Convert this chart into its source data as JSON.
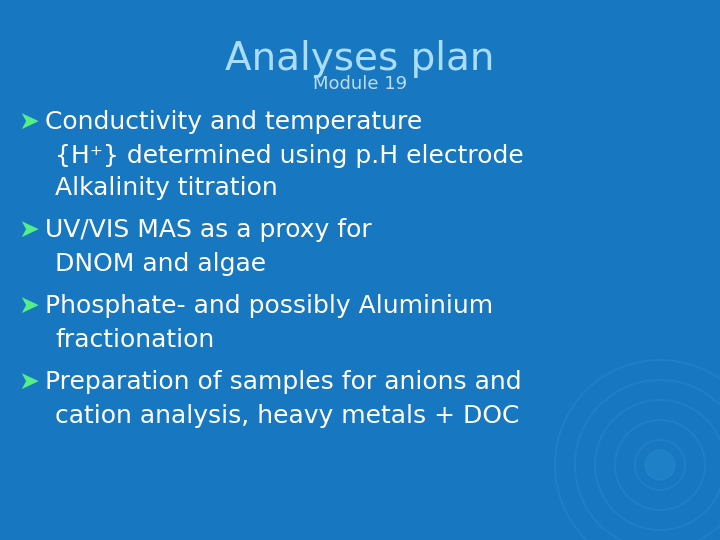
{
  "title": "Analyses plan",
  "subtitle": "Module 19",
  "background_color": "#1777c0",
  "title_color": "#aaddff",
  "subtitle_color": "#bbddee",
  "bullet_color": "#55ee88",
  "text_color": "#ffffff",
  "title_fontsize": 28,
  "subtitle_fontsize": 13,
  "bullet_fontsize": 18,
  "indent_fontsize": 18,
  "bullets": [
    {
      "bullet": "➤Conductivity and temperature",
      "indent": [
        "{H⁺} determined using p.H electrode",
        "Alkalinity titration"
      ]
    },
    {
      "bullet": "➤UV/VIS MAS as a proxy for",
      "indent": [
        "DNOM and algae"
      ]
    },
    {
      "bullet": "➤Phosphate- and possibly Aluminium",
      "indent": [
        "fractionation"
      ]
    },
    {
      "bullet": "➤Preparation of samples for anions and",
      "indent": [
        "cation analysis, heavy metals + DOC"
      ]
    }
  ]
}
